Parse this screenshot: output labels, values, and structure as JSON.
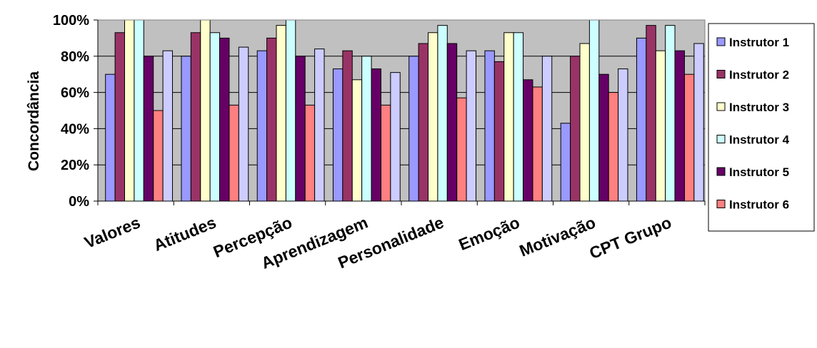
{
  "chart_data": {
    "type": "bar",
    "title": "",
    "xlabel": "",
    "ylabel": "Concordância",
    "ylim": [
      0,
      1
    ],
    "ytick_labels": [
      "0%",
      "20%",
      "40%",
      "60%",
      "80%",
      "100%"
    ],
    "grid": true,
    "legend_position": "right",
    "colors": {
      "plot_background": "#c0c0c0",
      "gridline": "#000000"
    },
    "categories": [
      "Valores",
      "Atitudes",
      "Percepção",
      "Aprendizagem",
      "Personalidade",
      "Emoção",
      "Motivação",
      "CPT Grupo"
    ],
    "series": [
      {
        "name": "Instrutor 1",
        "color": "#9999ff",
        "values": [
          0.7,
          0.8,
          0.83,
          0.73,
          0.8,
          0.83,
          0.43,
          0.9
        ]
      },
      {
        "name": "Instrutor 2",
        "color": "#993366",
        "values": [
          0.93,
          0.93,
          0.9,
          0.83,
          0.87,
          0.77,
          0.8,
          0.97
        ]
      },
      {
        "name": "Instrutor 3",
        "color": "#ffffcc",
        "values": [
          1.0,
          1.0,
          0.97,
          0.67,
          0.93,
          0.93,
          0.87,
          0.83
        ]
      },
      {
        "name": "Instrutor 4",
        "color": "#ccffff",
        "values": [
          1.0,
          0.93,
          1.0,
          0.8,
          0.97,
          0.93,
          1.0,
          0.97
        ]
      },
      {
        "name": "Instrutor 5",
        "color": "#660066",
        "values": [
          0.8,
          0.9,
          0.8,
          0.73,
          0.87,
          0.67,
          0.7,
          0.83
        ]
      },
      {
        "name": "Instrutor 6",
        "color": "#ff8080",
        "values": [
          0.5,
          0.53,
          0.53,
          0.53,
          0.57,
          0.63,
          0.6,
          0.7
        ]
      },
      {
        "color": "#ccccff",
        "values": [
          0.83,
          0.85,
          0.84,
          0.71,
          0.83,
          0.8,
          0.73,
          0.87
        ]
      }
    ]
  }
}
